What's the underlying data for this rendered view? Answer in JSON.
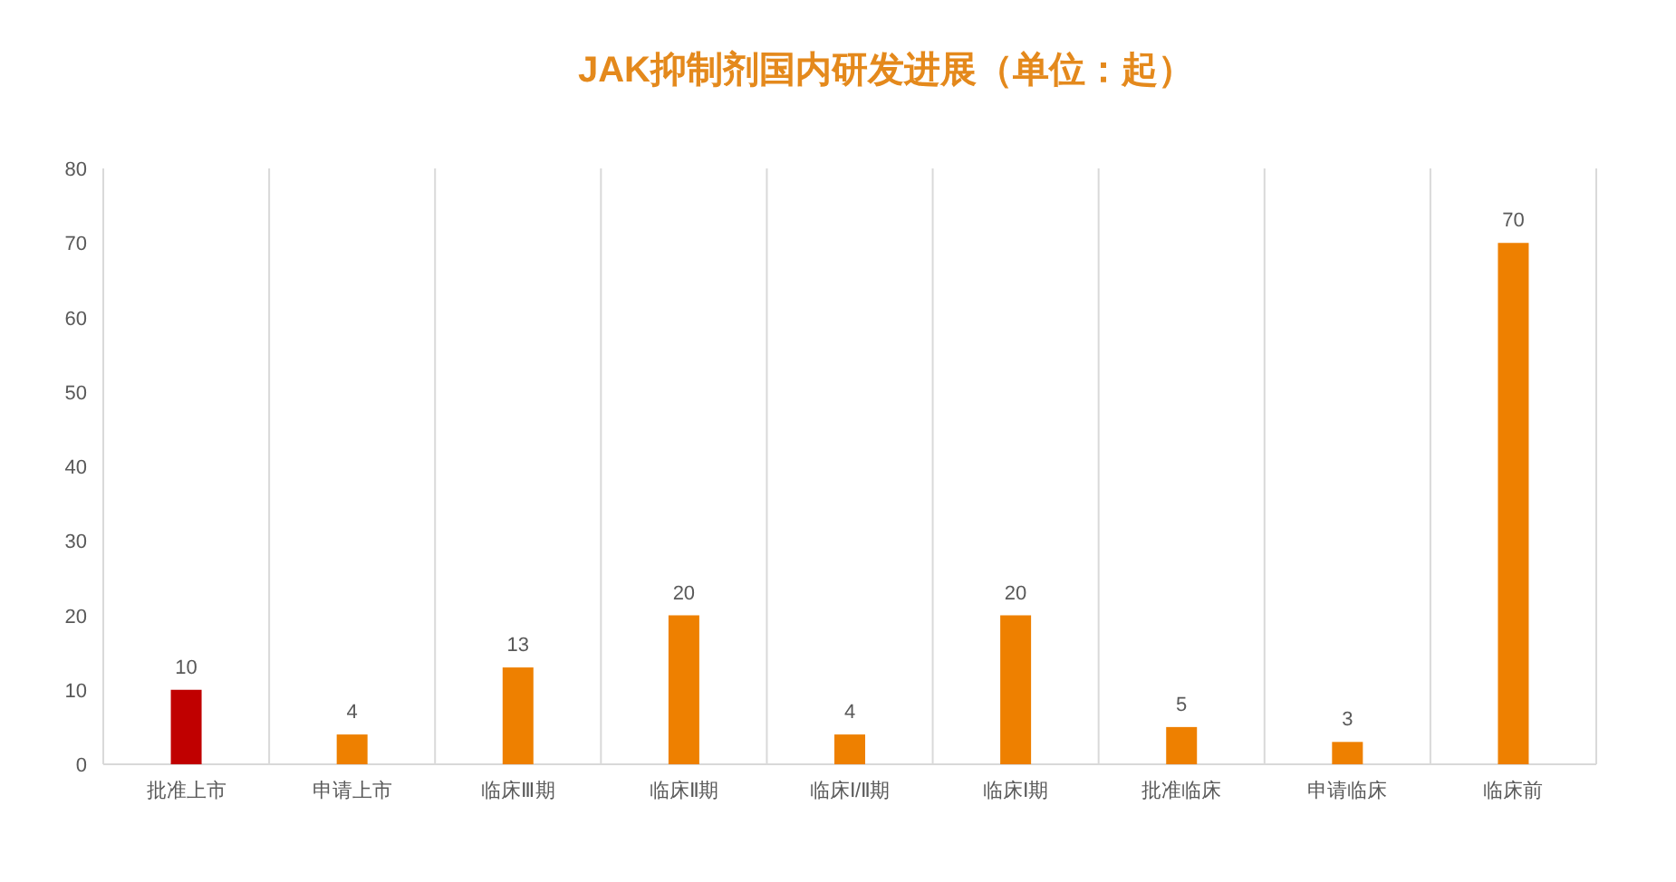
{
  "chart_data": {
    "type": "bar",
    "title": "JAK抑制剂国内研发进展（单位：起）",
    "categories": [
      "批准上市",
      "申请上市",
      "临床Ⅲ期",
      "临床Ⅱ期",
      "临床Ⅰ/Ⅱ期",
      "临床Ⅰ期",
      "批准临床",
      "申请临床",
      "临床前"
    ],
    "values": [
      10,
      4,
      13,
      20,
      4,
      20,
      5,
      3,
      70
    ],
    "colors": [
      "#c00000",
      "#ee8000",
      "#ee8000",
      "#ee8000",
      "#ee8000",
      "#ee8000",
      "#ee8000",
      "#ee8000",
      "#ee8000"
    ],
    "ylim": [
      0,
      80
    ],
    "yticks": [
      0,
      10,
      20,
      30,
      40,
      50,
      60,
      70,
      80
    ],
    "grid": "x",
    "data_labels": true
  }
}
